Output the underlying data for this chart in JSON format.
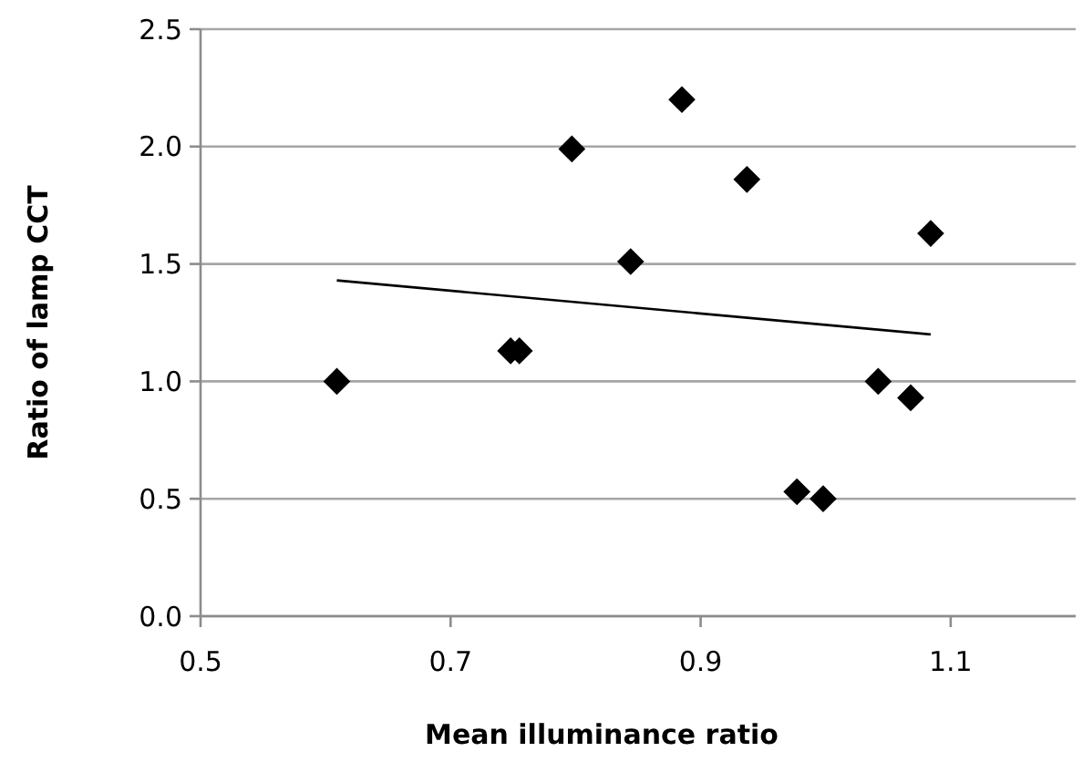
{
  "chart_data": {
    "type": "scatter",
    "xlabel": "Mean illuminance ratio",
    "ylabel": "Ratio of lamp CCT",
    "xlim": [
      0.5,
      1.2
    ],
    "xticks": [
      0.5,
      0.7,
      0.9,
      1.1
    ],
    "ylim": [
      0,
      2.5
    ],
    "yticks": [
      {
        "value": 0,
        "label": "0.0"
      },
      0.5,
      {
        "value": 1,
        "label": "1.0"
      },
      1.5,
      {
        "value": 2,
        "label": "2.0"
      },
      2.5
    ],
    "grid": "y",
    "series": [
      {
        "color": "#000000",
        "marker": "diamond",
        "x": [
          0.609,
          0.748,
          0.755,
          0.797,
          0.844,
          0.885,
          0.937,
          0.977,
          0.998,
          1.042,
          1.068,
          1.084
        ],
        "values": [
          1.0,
          1.13,
          1.13,
          1.99,
          1.51,
          2.2,
          1.86,
          0.53,
          0.5,
          1.0,
          0.93,
          1.63
        ]
      },
      {
        "type": "line",
        "marker": "none",
        "color": "#000000",
        "x": [
          0.609,
          1.084
        ],
        "values": [
          1.43,
          1.2
        ]
      }
    ]
  }
}
